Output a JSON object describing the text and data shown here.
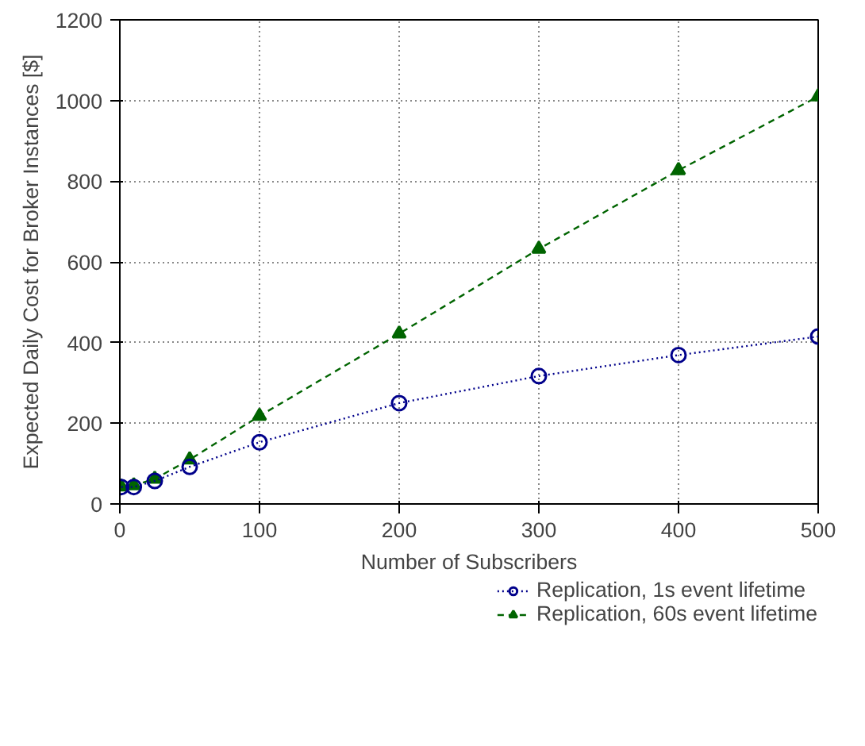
{
  "chart_data": {
    "type": "line",
    "xlabel": "Number of Subscribers",
    "ylabel": "Expected Daily Cost for Broker Instances [$]",
    "xlim": [
      0,
      500
    ],
    "xticks": [
      0,
      100,
      200,
      300,
      400,
      500
    ],
    "ylim": [
      0,
      1200
    ],
    "yticks": [
      0,
      200,
      400,
      600,
      800,
      1000,
      1200
    ],
    "x": [
      1,
      10,
      25,
      50,
      100,
      200,
      300,
      400,
      500
    ],
    "grid": true,
    "legend": "bottom",
    "series": [
      {
        "name": "Replication, 1s event lifetime",
        "color": "#00008b",
        "marker": "circle",
        "line_style": "dotted",
        "values": [
          42,
          42,
          57,
          92,
          153,
          250,
          317,
          369,
          415
        ]
      },
      {
        "name": "Replication, 60s event lifetime",
        "color": "#006400",
        "marker": "triangle",
        "line_style": "dashed",
        "values": [
          43,
          46,
          62,
          110,
          218,
          422,
          632,
          827,
          1010
        ]
      }
    ]
  }
}
